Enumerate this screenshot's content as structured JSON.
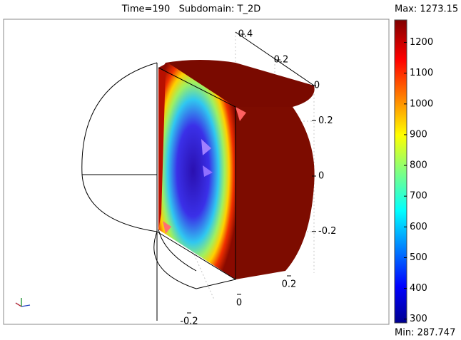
{
  "chart_data": {
    "type": "surface3d",
    "title": "Time=190   Subdomain: T_2D",
    "colorbar": {
      "min": {
        "value": 287.747,
        "label": "Min: 287.747"
      },
      "max": {
        "value": 1273.15,
        "label": "Max: 1273.15"
      },
      "ticks": [
        300,
        400,
        500,
        600,
        700,
        800,
        900,
        1000,
        1100,
        1200
      ]
    },
    "xlim": [
      -0.3,
      0.3
    ],
    "xticks": [
      0.2,
      0,
      -0.2
    ],
    "ylim": [
      0,
      0.45
    ],
    "yticks": [
      0.4,
      0.2,
      0
    ],
    "zlim": [
      -0.35,
      0.35
    ],
    "zticks": [
      0.2,
      0,
      -0.2
    ]
  }
}
